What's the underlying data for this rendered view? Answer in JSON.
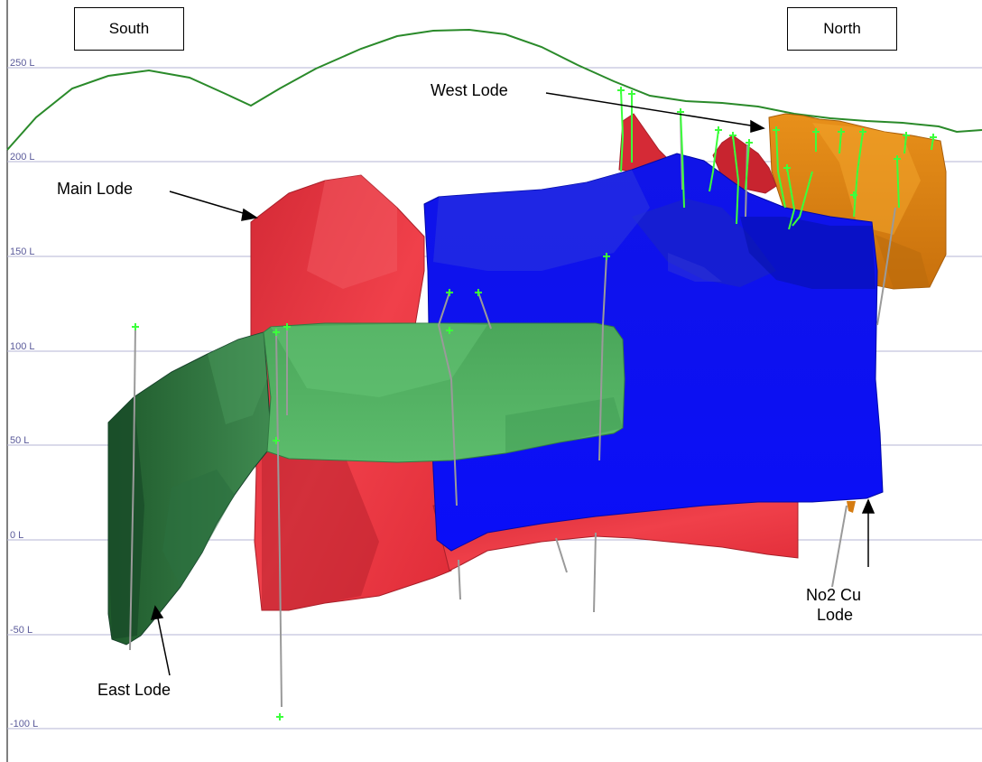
{
  "direction_labels": {
    "south": "South",
    "north": "North"
  },
  "levels": [
    "250 L",
    "200 L",
    "150 L",
    "100 L",
    "50 L",
    "0 L",
    "-50 L",
    "-100 L"
  ],
  "lodes": [
    {
      "name": "West Lode",
      "color": "#e08c12"
    },
    {
      "name": "Main Lode",
      "color": "#e32f3c"
    },
    {
      "name": "East Lode",
      "color": "#2c6e3e"
    },
    {
      "name": "No2 Cu Lode",
      "color": "#0a0ef2"
    }
  ],
  "callouts": {
    "west": "West Lode",
    "main": "Main Lode",
    "east": "East Lode",
    "no2": "No2 Cu",
    "no2_cut": "Lode"
  },
  "colors": {
    "surface": "#2a8a2a",
    "level_line": "#b4b4d4",
    "drillhole": "#9a9a9a",
    "collar": "#3cff3c",
    "main_green": "#52b062"
  }
}
